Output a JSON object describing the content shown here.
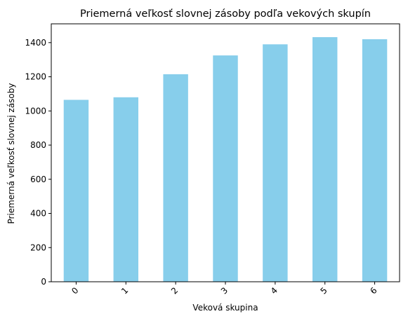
{
  "chart_data": {
    "type": "bar",
    "title": "Priemerná veľkosť slovnej zásoby podľa vekových skupín",
    "xlabel": "Veková skupina",
    "ylabel": "Priemerná veľkosť slovnej zásoby",
    "categories": [
      "0",
      "1",
      "2",
      "3",
      "4",
      "5",
      "6"
    ],
    "values": [
      1065,
      1080,
      1215,
      1325,
      1390,
      1432,
      1420
    ],
    "ylim": [
      0,
      1510
    ],
    "yticks": [
      0,
      200,
      400,
      600,
      800,
      1000,
      1200,
      1400
    ],
    "ytick_labels": [
      "0",
      "200",
      "400",
      "600",
      "800",
      "1000",
      "1200",
      "1400"
    ],
    "bar_color": "#87CEEB",
    "grid": false,
    "xtick_rotation": 45
  }
}
